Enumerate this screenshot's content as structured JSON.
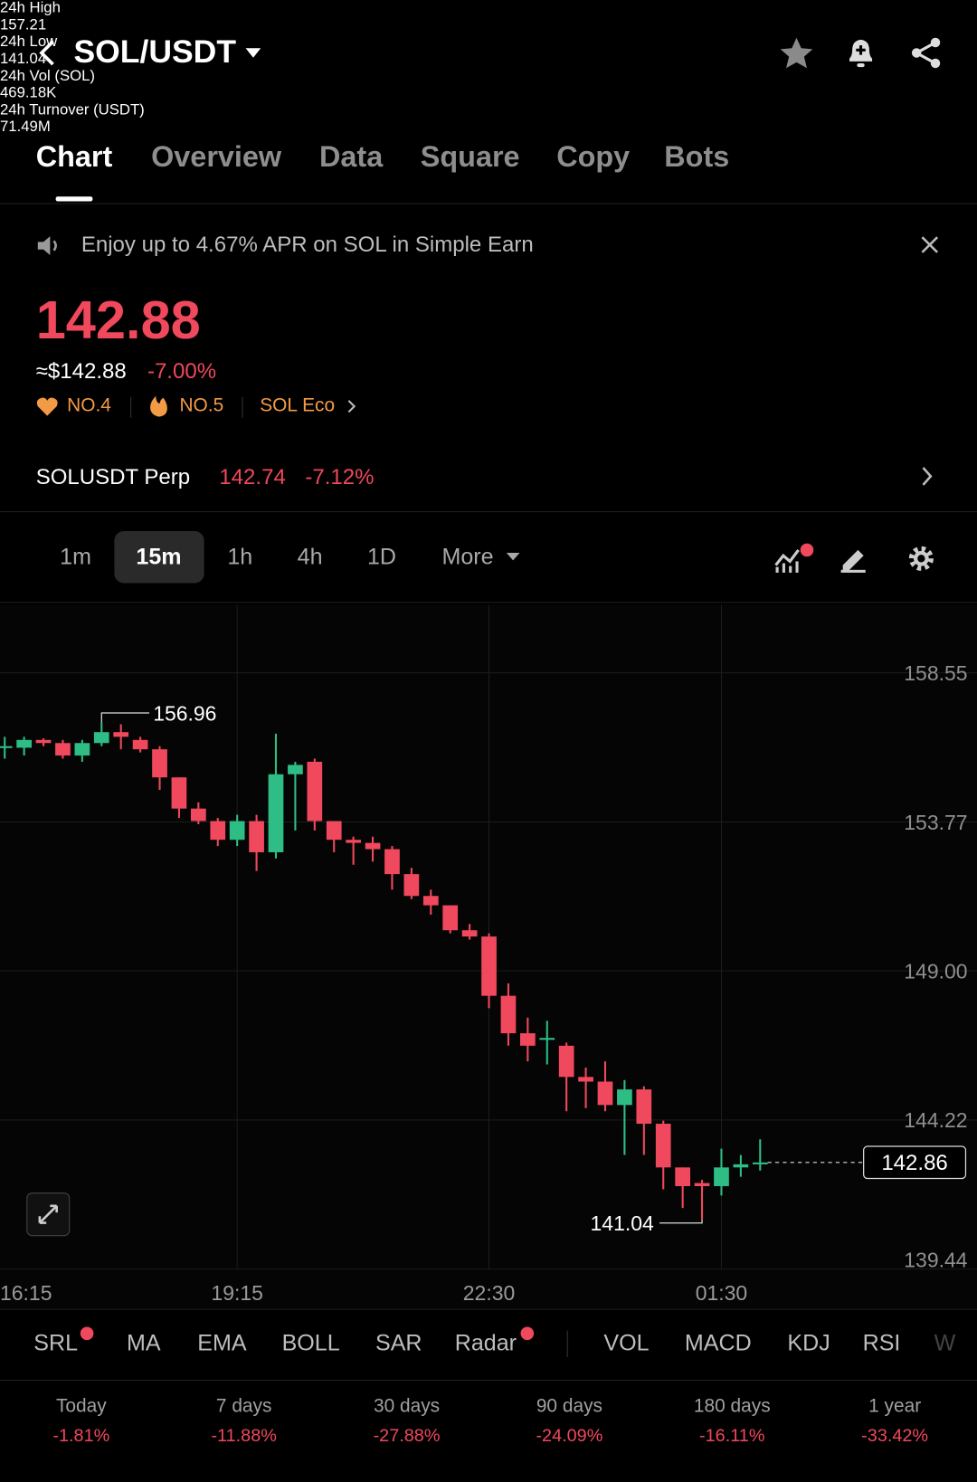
{
  "header": {
    "title": "SOL/USDT"
  },
  "tabs": [
    "Chart",
    "Overview",
    "Data",
    "Square",
    "Copy",
    "Bots"
  ],
  "banner": "Enjoy up to 4.67% APR on SOL in Simple Earn",
  "price": {
    "last": "142.88",
    "usd": "≈$142.88",
    "change": "-7.00%"
  },
  "badges": [
    "NO.4",
    "NO.5",
    "SOL Eco"
  ],
  "stats": [
    {
      "label": "24h High",
      "value": "157.21"
    },
    {
      "label": "24h Low",
      "value": "141.04"
    },
    {
      "label": "24h Vol (SOL)",
      "value": "469.18K"
    },
    {
      "label": "24h Turnover (USDT)",
      "value": "71.49M"
    }
  ],
  "perp": {
    "name": "SOLUSDT Perp",
    "price": "142.74",
    "change": "-7.12%"
  },
  "intervals": [
    "1m",
    "15m",
    "1h",
    "4h",
    "1D",
    "More"
  ],
  "indicators": {
    "main": [
      "SRL",
      "MA",
      "EMA",
      "BOLL",
      "SAR",
      "Radar"
    ],
    "sub": [
      "VOL",
      "MACD",
      "KDJ",
      "RSI",
      "W"
    ]
  },
  "performance": [
    {
      "period": "Today",
      "change": "-1.81%"
    },
    {
      "period": "7 days",
      "change": "-11.88%"
    },
    {
      "period": "30 days",
      "change": "-27.88%"
    },
    {
      "period": "90 days",
      "change": "-24.09%"
    },
    {
      "period": "180 days",
      "change": "-16.11%"
    },
    {
      "period": "1 year",
      "change": "-33.42%"
    }
  ],
  "chart_data": {
    "type": "candlestick",
    "categories": [
      "16:15",
      null,
      null,
      null,
      null,
      null,
      null,
      null,
      null,
      null,
      null,
      null,
      "19:15",
      null,
      null,
      null,
      null,
      null,
      null,
      null,
      null,
      null,
      null,
      null,
      null,
      "22:30",
      null,
      null,
      null,
      null,
      null,
      null,
      null,
      null,
      null,
      null,
      null,
      "01:30",
      null,
      null
    ],
    "open": [
      156.15,
      156.15,
      156.4,
      156.3,
      155.9,
      156.3,
      156.65,
      156.4,
      156.1,
      155.2,
      154.2,
      153.8,
      153.2,
      153.8,
      152.8,
      155.3,
      155.7,
      153.8,
      153.2,
      153.1,
      152.9,
      152.1,
      151.4,
      151.1,
      150.3,
      150.1,
      148.2,
      147.0,
      146.8,
      146.6,
      145.6,
      145.45,
      144.7,
      145.2,
      144.1,
      142.7,
      142.2,
      142.1,
      142.7,
      142.8
    ],
    "high": [
      156.5,
      156.5,
      156.45,
      156.4,
      156.4,
      156.96,
      156.9,
      156.5,
      156.2,
      155.2,
      154.4,
      153.9,
      154.0,
      154.0,
      156.6,
      155.7,
      155.8,
      153.8,
      153.3,
      153.3,
      153.0,
      152.3,
      151.6,
      151.1,
      150.5,
      150.2,
      148.6,
      147.5,
      147.4,
      146.7,
      145.9,
      146.1,
      145.5,
      145.3,
      144.2,
      142.7,
      142.3,
      143.3,
      143.1,
      143.6
    ],
    "low": [
      155.8,
      155.9,
      156.2,
      155.8,
      155.7,
      156.2,
      156.1,
      156.0,
      154.8,
      153.9,
      153.7,
      153.0,
      153.0,
      152.2,
      152.6,
      153.5,
      153.5,
      152.8,
      152.4,
      152.5,
      151.6,
      151.3,
      150.8,
      150.2,
      150.0,
      147.8,
      146.6,
      146.1,
      146.0,
      144.5,
      144.6,
      144.5,
      143.1,
      143.1,
      142.0,
      141.4,
      141.04,
      141.8,
      142.4,
      142.6
    ],
    "close": [
      156.2,
      156.4,
      156.3,
      155.9,
      156.3,
      156.65,
      156.5,
      156.1,
      155.2,
      154.2,
      153.8,
      153.2,
      153.8,
      152.8,
      155.3,
      155.6,
      153.8,
      153.2,
      153.1,
      152.9,
      152.1,
      151.4,
      151.1,
      150.3,
      150.1,
      148.2,
      147.0,
      146.6,
      146.85,
      145.6,
      145.45,
      144.7,
      145.2,
      144.1,
      142.7,
      142.1,
      142.1,
      142.7,
      142.8,
      142.86
    ],
    "up_color": "#2ebd85",
    "down_color": "#f0485c",
    "ylim": [
      139.44,
      160.73
    ],
    "yticks": [
      158.55,
      153.77,
      {
        "value": 149,
        "label": "149.00"
      },
      144.22,
      139.44
    ],
    "grid": true
  }
}
